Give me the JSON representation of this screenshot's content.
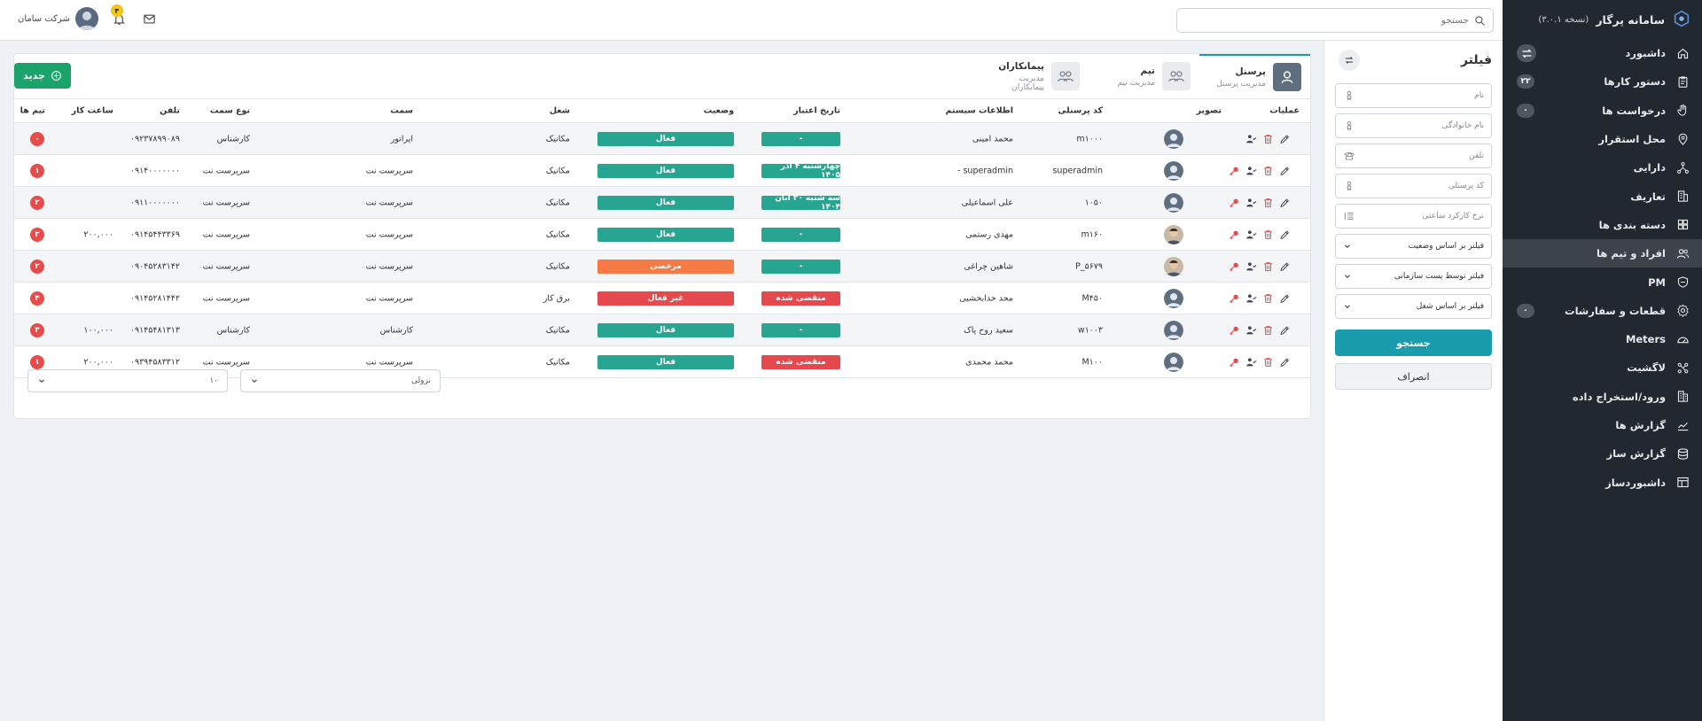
{
  "sidebar": {
    "brand": "سامانه پرگار",
    "version": "(نسخه ۳.۰.۱)",
    "items": [
      {
        "label": "داشبورد",
        "icon": "home-icon",
        "badge": "",
        "toggle": true
      },
      {
        "label": "دستور کارها",
        "icon": "clipboard-icon",
        "badge": "۲۲"
      },
      {
        "label": "درخواست ها",
        "icon": "hand-icon",
        "badge": "۰"
      },
      {
        "label": "محل استقرار",
        "icon": "location-icon",
        "badge": ""
      },
      {
        "label": "دارایی",
        "icon": "network-icon",
        "badge": ""
      },
      {
        "label": "تعاریف",
        "icon": "building-icon",
        "badge": ""
      },
      {
        "label": "دسته بندی ها",
        "icon": "grid-icon",
        "badge": ""
      },
      {
        "label": "افراد و تیم ها",
        "icon": "users-icon",
        "badge": "",
        "active": true
      },
      {
        "label": "PM",
        "icon": "shield-icon",
        "badge": ""
      },
      {
        "label": "قطعات و سفارشات",
        "icon": "gear-icon",
        "badge": "۰"
      },
      {
        "label": "Meters",
        "icon": "gauge-icon",
        "badge": ""
      },
      {
        "label": "لاگشیت",
        "icon": "branches-icon",
        "badge": ""
      },
      {
        "label": "ورود/استخراج داده",
        "icon": "database-building-icon",
        "badge": ""
      },
      {
        "label": "گزارش ها",
        "icon": "chart-icon",
        "badge": ""
      },
      {
        "label": "گزارش ساز",
        "icon": "stack-icon",
        "badge": ""
      },
      {
        "label": "داشبوردساز",
        "icon": "layout-icon",
        "badge": ""
      }
    ]
  },
  "topbar": {
    "search_placeholder": "جستجو",
    "company": "شرکت سامان",
    "notif_count": "۴"
  },
  "filter": {
    "title": "فیلتر",
    "fields": [
      {
        "placeholder": "نام",
        "icon": "person-icon"
      },
      {
        "placeholder": "نام خانوادگی",
        "icon": "person-icon"
      },
      {
        "placeholder": "تلفن",
        "icon": "phone-icon"
      },
      {
        "placeholder": "کد پرسنلی",
        "icon": "person-icon"
      },
      {
        "placeholder": "نرخ کارکرد ساعتی",
        "icon": "list-icon"
      }
    ],
    "selects": [
      "فیلتر بر اساس وضعیت",
      "فیلتر توسط پست سازمانی",
      "فیلتر بر اساس شغل"
    ],
    "search_btn": "جستجو",
    "cancel_btn": "انصراف"
  },
  "tabs": [
    {
      "title": "پرسنل",
      "sub": "مدیریت پرسنل",
      "active": true
    },
    {
      "title": "تیم",
      "sub": "مدیریت تیم"
    },
    {
      "title": "پیمانکاران",
      "sub": "مدیریت پیمانکاران"
    }
  ],
  "new_btn": "جدید",
  "table": {
    "headers": {
      "ops": "عملیات",
      "pic": "تصویر",
      "code": "کد پرسنلی",
      "sys": "اطلاعات سیستم",
      "valid": "تاریخ اعتبار",
      "status": "وضعیت",
      "job": "شغل",
      "position": "سمت",
      "ptype": "نوع سمت",
      "phone": "تلفن",
      "hours": "ساعت کار",
      "teams": "تیم ها"
    },
    "rows": [
      {
        "code": "m۱۰۰۰",
        "sys": "محمد امینی",
        "valid": "-",
        "valid_color": "#27a591",
        "status": "فعال",
        "status_color": "#27a591",
        "job": "مکانیک",
        "position": "اپراتور",
        "ptype": "کارشناس",
        "phone": "۰۹۲۳۷۸۹۹۰۸۹",
        "hours": "",
        "teams": "۰",
        "key": false,
        "photo": false
      },
      {
        "code": "superadmin",
        "sys": "superadmin -",
        "valid": "چهارشنبه ۴ آذر ۱۴۰۵",
        "valid_color": "#27a591",
        "status": "فعال",
        "status_color": "#27a591",
        "job": "مکانیک",
        "position": "سرپرست نت",
        "ptype": "سرپرست نت",
        "phone": "۰۹۱۴۰۰۰۰۰۰۰",
        "hours": "",
        "teams": "۱",
        "key": true,
        "photo": false
      },
      {
        "code": "۱۰۵۰",
        "sys": "علی اسماعیلی",
        "valid": "سه شنبه ۲۰ آبان ۱۴۰۴",
        "valid_color": "#27a591",
        "status": "فعال",
        "status_color": "#27a591",
        "job": "مکانیک",
        "position": "سرپرست نت",
        "ptype": "سرپرست نت",
        "phone": "۰۹۱۱۰۰۰۰۰۰۰",
        "hours": "",
        "teams": "۲",
        "key": true,
        "photo": false
      },
      {
        "code": "m۱۶۰",
        "sys": "مهدی رستمی",
        "valid": "-",
        "valid_color": "#27a591",
        "status": "فعال",
        "status_color": "#27a591",
        "job": "مکانیک",
        "position": "سرپرست نت",
        "ptype": "سرپرست نت",
        "phone": "۰۹۱۴۵۴۴۳۳۶۹",
        "hours": "۲۰۰,۰۰۰",
        "teams": "۲",
        "key": true,
        "photo": true
      },
      {
        "code": "P_۵۶۷۹",
        "sys": "شاهین چراغی",
        "valid": "-",
        "valid_color": "#27a591",
        "status": "مرخصی",
        "status_color": "#f57a45",
        "job": "مکانیک",
        "position": "سرپرست نت",
        "ptype": "سرپرست نت",
        "phone": "۰۹۰۴۵۲۸۳۱۴۲",
        "hours": "",
        "teams": "۲",
        "key": true,
        "photo": true
      },
      {
        "code": "M۴۵۰",
        "sys": "محد خدابخشیی",
        "valid": "منقضی شده",
        "valid_color": "#e5484d",
        "status": "غیر فعال",
        "status_color": "#e5484d",
        "job": "برق کار",
        "position": "سرپرست نت",
        "ptype": "سرپرست نت",
        "phone": "۰۹۱۴۵۲۸۱۴۴۲",
        "hours": "",
        "teams": "۴",
        "key": true,
        "photo": false
      },
      {
        "code": "w۱۰۰۳",
        "sys": "سعید روح پاک",
        "valid": "-",
        "valid_color": "#27a591",
        "status": "فعال",
        "status_color": "#27a591",
        "job": "مکانیک",
        "position": "کارشناس",
        "ptype": "کارشناس",
        "phone": "۰۹۱۴۵۴۸۱۳۱۳",
        "hours": "۱۰۰,۰۰۰",
        "teams": "۳",
        "key": true,
        "photo": false
      },
      {
        "code": "M۱۰۰",
        "sys": "محمد محمدی",
        "valid": "منقضی شده",
        "valid_color": "#e5484d",
        "status": "فعال",
        "status_color": "#27a591",
        "job": "مکانیک",
        "position": "سرپرست نت",
        "ptype": "سرپرست نت",
        "phone": "۰۹۳۹۴۵۸۳۳۱۲",
        "hours": "۲۰۰,۰۰۰",
        "teams": "۱",
        "key": true,
        "photo": false
      }
    ]
  },
  "pager": {
    "sort_value": "نزولی",
    "size_value": "۱۰"
  }
}
